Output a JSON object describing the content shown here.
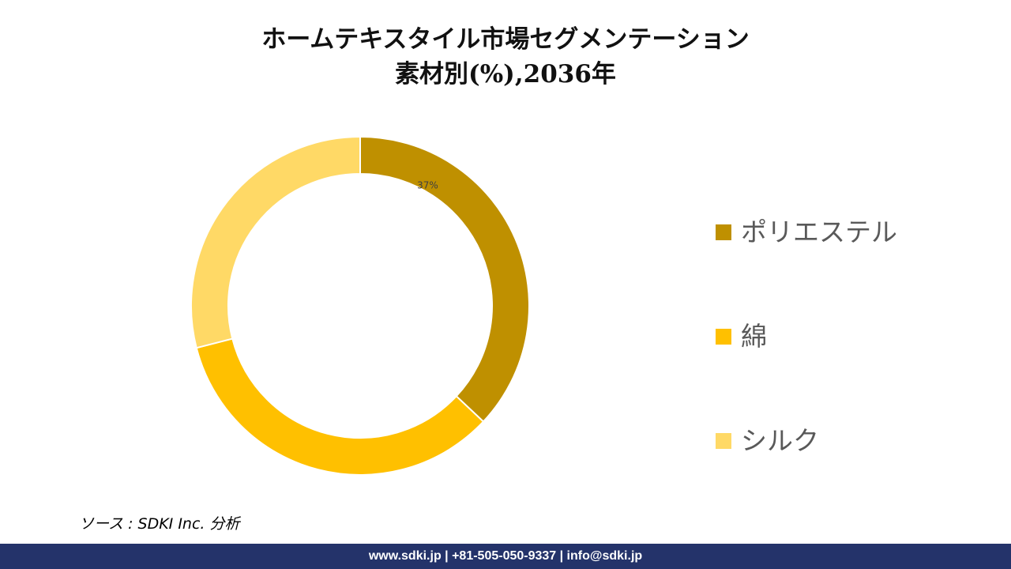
{
  "chart_data": {
    "type": "donut",
    "title_line1": "ホームテキスタイル市場セグメンテーション",
    "title_line2": "素材別(%),2036年",
    "categories": [
      "ポリエステル",
      "綿",
      "シルク"
    ],
    "values": [
      37,
      34,
      29
    ],
    "data_labels": [
      "37%",
      "",
      ""
    ],
    "colors": [
      "#bf9000",
      "#ffc000",
      "#ffd966"
    ],
    "legend_position": "right"
  },
  "source": "ソース : SDKI Inc. 分析",
  "footer": "www.sdki.jp | +81-505-050-9337 | info@sdki.jp"
}
